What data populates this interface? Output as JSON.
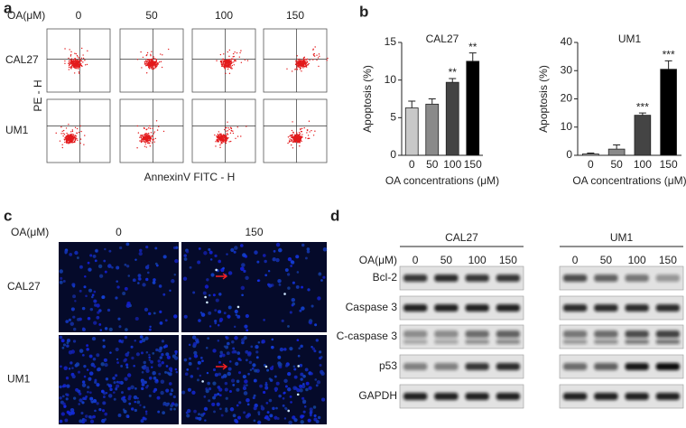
{
  "panel_a": {
    "letter": "a",
    "oa_label": "OA(μM)",
    "concentrations": [
      "0",
      "50",
      "100",
      "150"
    ],
    "rows": [
      "CAL27",
      "UM1"
    ],
    "y_label": "PE - H",
    "x_label": "AnnexinV FITC - H"
  },
  "panel_b": {
    "letter": "b"
  },
  "chart_data": [
    {
      "type": "bar",
      "title": "CAL27",
      "categories": [
        "0",
        "50",
        "100",
        "150"
      ],
      "values": [
        6.3,
        6.8,
        9.7,
        12.5
      ],
      "errors": [
        0.9,
        0.7,
        0.5,
        1.1
      ],
      "colors": [
        "#c8c8c8",
        "#8a8a8a",
        "#444444",
        "#000000"
      ],
      "annotations": [
        null,
        null,
        "**",
        "**"
      ],
      "ylim": [
        0,
        15
      ],
      "yticks": [
        0,
        5,
        10,
        15
      ],
      "y_label": "Apoptosis (%)",
      "x_label": "OA concentrations (μM)"
    },
    {
      "type": "bar",
      "title": "UM1",
      "categories": [
        "0",
        "50",
        "100",
        "150"
      ],
      "values": [
        0.5,
        2.2,
        14.2,
        30.5
      ],
      "errors": [
        0.3,
        1.5,
        0.8,
        3.0
      ],
      "colors": [
        "#c8c8c8",
        "#8a8a8a",
        "#444444",
        "#000000"
      ],
      "annotations": [
        null,
        null,
        "***",
        "***"
      ],
      "ylim": [
        0,
        40
      ],
      "yticks": [
        0,
        10,
        20,
        30,
        40
      ],
      "y_label": "Apoptosis (%)",
      "x_label": "OA concentrations (μM)"
    }
  ],
  "panel_c": {
    "letter": "c",
    "oa_label": "OA(μM)",
    "concentrations": [
      "0",
      "150"
    ],
    "rows": [
      "CAL27",
      "UM1"
    ]
  },
  "panel_d": {
    "letter": "d",
    "oa_label": "OA(μM)",
    "groups": [
      {
        "name": "CAL27",
        "concentrations": [
          "0",
          "50",
          "100",
          "150"
        ]
      },
      {
        "name": "UM1",
        "concentrations": [
          "0",
          "50",
          "100",
          "150"
        ]
      }
    ],
    "proteins": [
      "Bcl-2",
      "Caspase 3",
      "C-caspase 3",
      "p53",
      "GAPDH"
    ]
  }
}
